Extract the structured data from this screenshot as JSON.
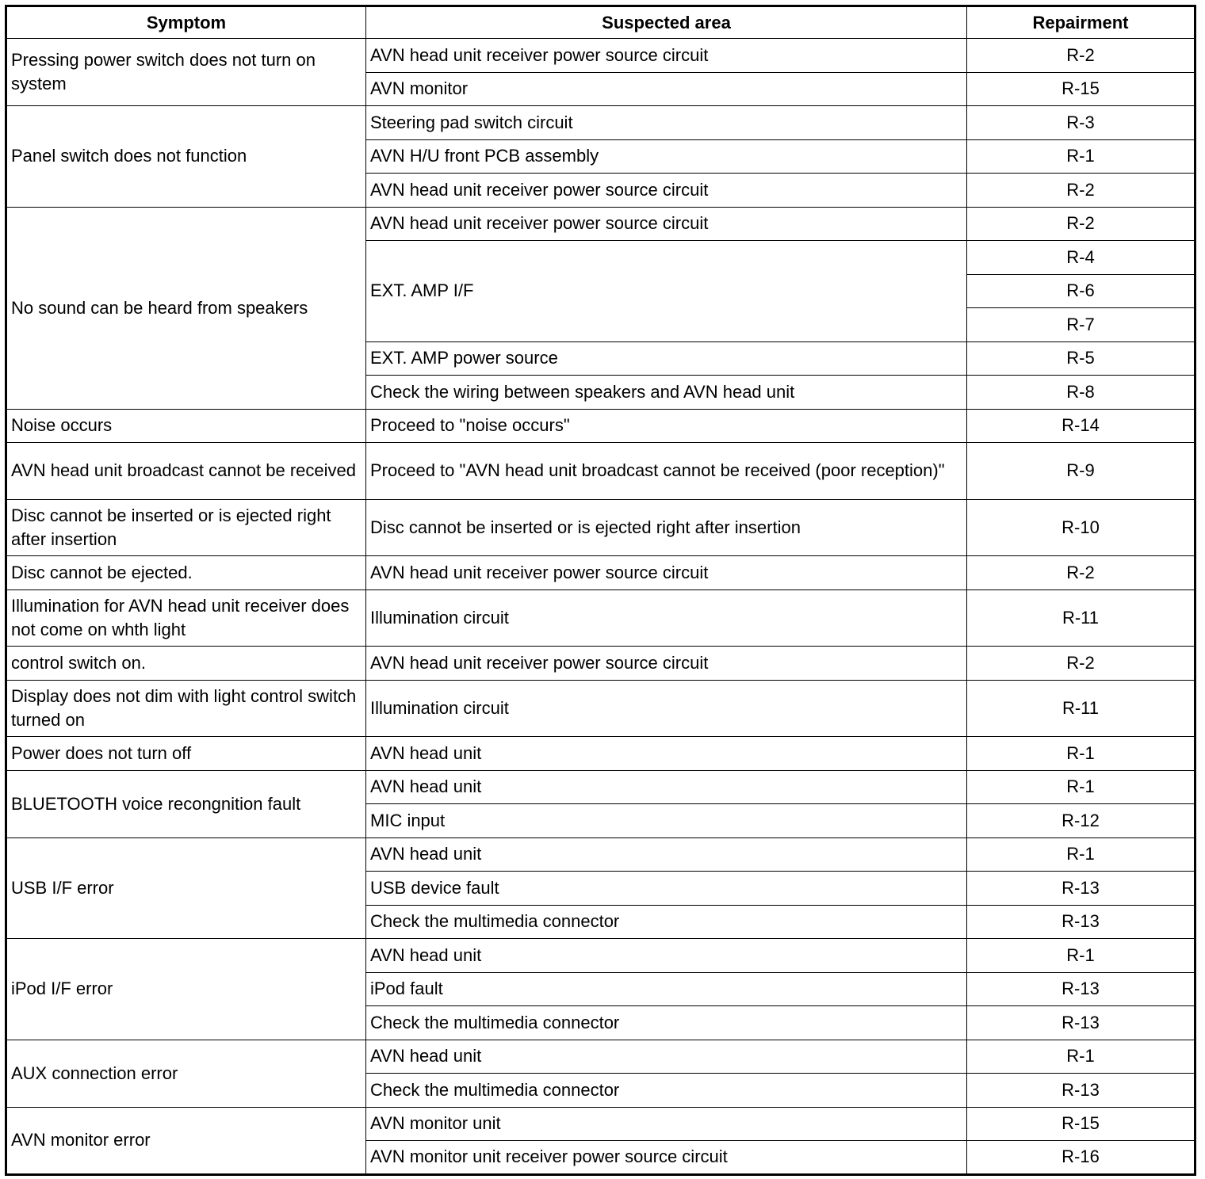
{
  "headers": {
    "symptom": "Symptom",
    "area": "Suspected area",
    "repair": "Repairment"
  },
  "groups": [
    {
      "symptom": "Pressing power switch does not turn on system",
      "areas": [
        {
          "area": "AVN head unit receiver power source circuit",
          "repairs": [
            "R-2"
          ]
        },
        {
          "area": "AVN monitor",
          "repairs": [
            "R-15"
          ]
        }
      ]
    },
    {
      "symptom": "Panel switch does not function",
      "areas": [
        {
          "area": "Steering pad switch circuit",
          "repairs": [
            "R-3"
          ]
        },
        {
          "area": "AVN H/U front PCB assembly",
          "repairs": [
            "R-1"
          ]
        },
        {
          "area": "AVN head unit receiver power source circuit",
          "repairs": [
            "R-2"
          ]
        }
      ]
    },
    {
      "symptom": "No sound can be heard from speakers",
      "areas": [
        {
          "area": "AVN head unit receiver power source circuit",
          "repairs": [
            "R-2"
          ]
        },
        {
          "area": "EXT. AMP I/F",
          "repairs": [
            "R-4",
            "R-6",
            "R-7"
          ]
        },
        {
          "area": "EXT. AMP power source",
          "repairs": [
            "R-5"
          ]
        },
        {
          "area": "Check the wiring between speakers and AVN head unit",
          "repairs": [
            "R-8"
          ]
        }
      ]
    },
    {
      "symptom": "Noise occurs",
      "areas": [
        {
          "area": "Proceed to \"noise occurs\"",
          "repairs": [
            "R-14"
          ]
        }
      ]
    },
    {
      "symptom": "AVN head unit broadcast cannot be received",
      "areas": [
        {
          "area": "Proceed to \"AVN head unit broadcast cannot be received (poor reception)\"",
          "repairs": [
            "R-9"
          ]
        }
      ]
    },
    {
      "symptom": "Disc cannot be inserted or is ejected right after insertion",
      "areas": [
        {
          "area": "Disc cannot be inserted or is ejected right after insertion",
          "repairs": [
            "R-10"
          ]
        }
      ]
    },
    {
      "symptom": "Disc cannot be ejected.",
      "areas": [
        {
          "area": "AVN head unit receiver power source circuit",
          "repairs": [
            "R-2"
          ]
        }
      ]
    },
    {
      "symptom": "Illumination for AVN head unit receiver does not come on whth light",
      "areas": [
        {
          "area": "Illumination circuit",
          "repairs": [
            "R-11"
          ]
        }
      ]
    },
    {
      "symptom": "control switch on.",
      "areas": [
        {
          "area": "AVN head unit receiver power source circuit",
          "repairs": [
            "R-2"
          ]
        }
      ]
    },
    {
      "symptom": "Display does not dim with light control switch turned on",
      "areas": [
        {
          "area": "Illumination circuit",
          "repairs": [
            "R-11"
          ]
        }
      ]
    },
    {
      "symptom": "Power does not turn off",
      "areas": [
        {
          "area": "AVN head unit",
          "repairs": [
            "R-1"
          ]
        }
      ]
    },
    {
      "symptom": "BLUETOOTH voice recongnition fault",
      "areas": [
        {
          "area": "AVN head unit",
          "repairs": [
            "R-1"
          ]
        },
        {
          "area": "MIC input",
          "repairs": [
            "R-12"
          ]
        }
      ]
    },
    {
      "symptom": "USB I/F error",
      "areas": [
        {
          "area": "AVN head unit",
          "repairs": [
            "R-1"
          ]
        },
        {
          "area": "USB device fault",
          "repairs": [
            "R-13"
          ]
        },
        {
          "area": "Check the multimedia connector",
          "repairs": [
            "R-13"
          ]
        }
      ]
    },
    {
      "symptom": "iPod I/F error",
      "areas": [
        {
          "area": "AVN head unit",
          "repairs": [
            "R-1"
          ]
        },
        {
          "area": "iPod fault",
          "repairs": [
            "R-13"
          ]
        },
        {
          "area": "Check the multimedia connector",
          "repairs": [
            "R-13"
          ]
        }
      ]
    },
    {
      "symptom": "AUX connection error",
      "areas": [
        {
          "area": "AVN head unit",
          "repairs": [
            "R-1"
          ]
        },
        {
          "area": "Check the multimedia connector",
          "repairs": [
            "R-13"
          ]
        }
      ]
    },
    {
      "symptom": "AVN monitor error",
      "areas": [
        {
          "area": "AVN monitor unit",
          "repairs": [
            "R-15"
          ]
        },
        {
          "area": "AVN monitor unit receiver power source circuit",
          "repairs": [
            "R-16"
          ]
        }
      ]
    }
  ]
}
